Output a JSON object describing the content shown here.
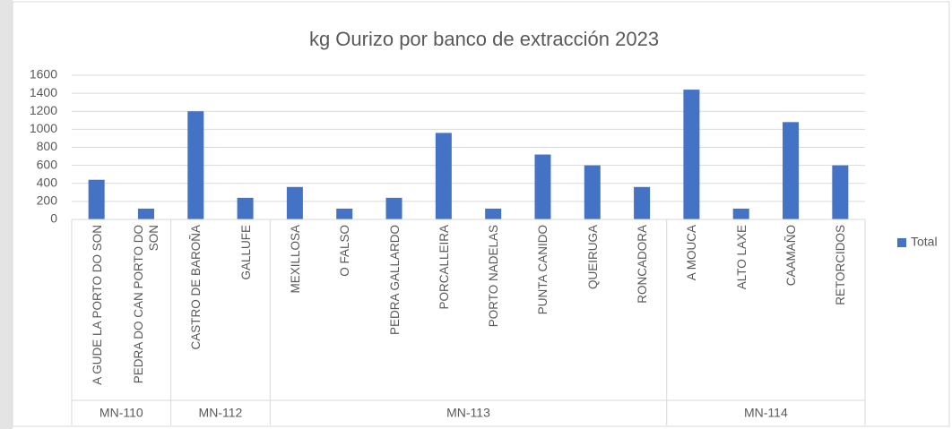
{
  "chart_data": {
    "type": "bar",
    "title": "kg Ourizo por banco de extracción 2023",
    "groups": [
      {
        "name": "MN-110",
        "categories": [
          "A GUDE LA PORTO DO SON",
          "PEDRA DO CAN PORTO DO SON"
        ]
      },
      {
        "name": "MN-112",
        "categories": [
          "CASTRO DE BAROÑA",
          "GALLUFE"
        ]
      },
      {
        "name": "MN-113",
        "categories": [
          "MEXILLOSA",
          "O FALSO",
          "PEDRA GALLARDO",
          "PORCALLEIRA",
          "PORTO NADELAS",
          "PUNTA CANIDO",
          "QUEIRUGA",
          "RONCADORA"
        ]
      },
      {
        "name": "MN-114",
        "categories": [
          "A MOUCA",
          "ALTO LAXE",
          "CAAMAÑO",
          "RETORCIDOS"
        ]
      }
    ],
    "series": [
      {
        "name": "Total",
        "color": "#4472c4",
        "values": [
          440,
          120,
          1200,
          240,
          360,
          120,
          240,
          960,
          120,
          720,
          600,
          360,
          1440,
          120,
          1080,
          600
        ]
      }
    ],
    "ylim": [
      0,
      1600
    ],
    "yticks": [
      0,
      200,
      400,
      600,
      800,
      1000,
      1200,
      1400,
      1600
    ],
    "grid": true,
    "legend": "right"
  }
}
